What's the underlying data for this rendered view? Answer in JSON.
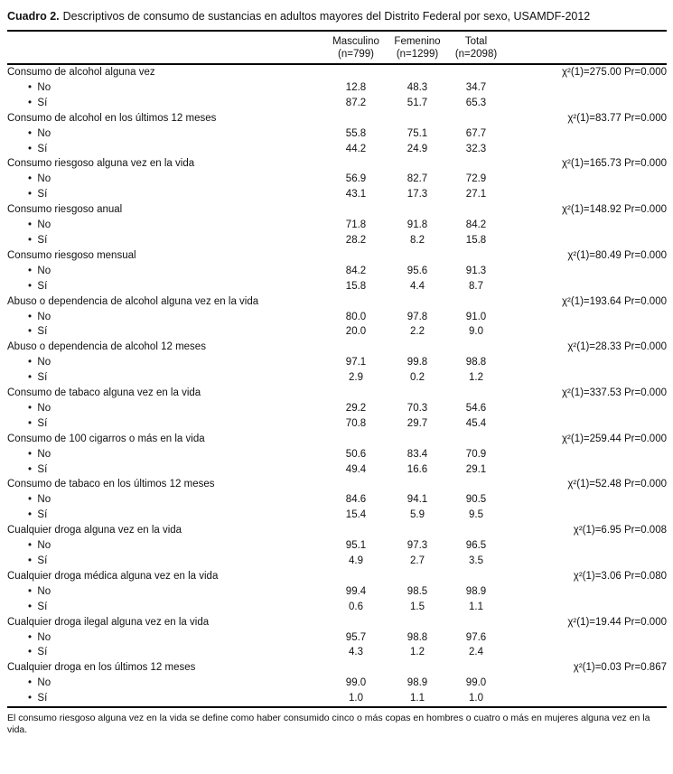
{
  "title": {
    "label": "Cuadro 2.",
    "text": "Descriptivos de consumo de sustancias en adultos mayores del Distrito Federal por sexo, USAMDF-2012"
  },
  "table": {
    "columns": [
      {
        "label": "Masculino",
        "sub": "(n=799)"
      },
      {
        "label": "Femenino",
        "sub": "(n=1299)"
      },
      {
        "label": "Total",
        "sub": "(n=2098)"
      }
    ],
    "sections": [
      {
        "label": "Consumo de alcohol alguna vez",
        "stat": "χ²(1)=275.00 Pr=0.000",
        "rows": [
          {
            "label": "No",
            "values": [
              "12.8",
              "48.3",
              "34.7"
            ]
          },
          {
            "label": "Sí",
            "values": [
              "87.2",
              "51.7",
              "65.3"
            ]
          }
        ]
      },
      {
        "label": "Consumo de alcohol en los últimos 12 meses",
        "stat": "χ²(1)=83.77 Pr=0.000",
        "rows": [
          {
            "label": "No",
            "values": [
              "55.8",
              "75.1",
              "67.7"
            ]
          },
          {
            "label": "Sí",
            "values": [
              "44.2",
              "24.9",
              "32.3"
            ]
          }
        ]
      },
      {
        "label": "Consumo riesgoso alguna vez en la vida",
        "stat": "χ²(1)=165.73 Pr=0.000",
        "rows": [
          {
            "label": "No",
            "values": [
              "56.9",
              "82.7",
              "72.9"
            ]
          },
          {
            "label": "Sí",
            "values": [
              "43.1",
              "17.3",
              "27.1"
            ]
          }
        ]
      },
      {
        "label": "Consumo riesgoso anual",
        "stat": "χ²(1)=148.92 Pr=0.000",
        "rows": [
          {
            "label": "No",
            "values": [
              "71.8",
              "91.8",
              "84.2"
            ]
          },
          {
            "label": "Sí",
            "values": [
              "28.2",
              "8.2",
              "15.8"
            ]
          }
        ]
      },
      {
        "label": "Consumo riesgoso mensual",
        "stat": "χ²(1)=80.49 Pr=0.000",
        "rows": [
          {
            "label": "No",
            "values": [
              "84.2",
              "95.6",
              "91.3"
            ]
          },
          {
            "label": "Sí",
            "values": [
              "15.8",
              "4.4",
              "8.7"
            ]
          }
        ]
      },
      {
        "label": "Abuso o dependencia de alcohol alguna vez en la vida",
        "stat": "χ²(1)=193.64 Pr=0.000",
        "rows": [
          {
            "label": "No",
            "values": [
              "80.0",
              "97.8",
              "91.0"
            ]
          },
          {
            "label": "Sí",
            "values": [
              "20.0",
              "2.2",
              "9.0"
            ]
          }
        ]
      },
      {
        "label": "Abuso o dependencia de alcohol 12 meses",
        "stat": "χ²(1)=28.33 Pr=0.000",
        "rows": [
          {
            "label": "No",
            "values": [
              "97.1",
              "99.8",
              "98.8"
            ]
          },
          {
            "label": "Sí",
            "values": [
              "2.9",
              "0.2",
              "1.2"
            ]
          }
        ]
      },
      {
        "label": "Consumo de tabaco alguna vez en la vida",
        "stat": "χ²(1)=337.53 Pr=0.000",
        "rows": [
          {
            "label": "No",
            "values": [
              "29.2",
              "70.3",
              "54.6"
            ]
          },
          {
            "label": "Sí",
            "values": [
              "70.8",
              "29.7",
              "45.4"
            ]
          }
        ]
      },
      {
        "label": "Consumo de 100 cigarros o más en la vida",
        "stat": "χ²(1)=259.44 Pr=0.000",
        "rows": [
          {
            "label": "No",
            "values": [
              "50.6",
              "83.4",
              "70.9"
            ]
          },
          {
            "label": "Sí",
            "values": [
              "49.4",
              "16.6",
              "29.1"
            ]
          }
        ]
      },
      {
        "label": "Consumo de tabaco en los últimos 12 meses",
        "stat": "χ²(1)=52.48 Pr=0.000",
        "rows": [
          {
            "label": "No",
            "values": [
              "84.6",
              "94.1",
              "90.5"
            ]
          },
          {
            "label": "Sí",
            "values": [
              "15.4",
              "5.9",
              "9.5"
            ]
          }
        ]
      },
      {
        "label": "Cualquier droga alguna vez en la vida",
        "stat": "χ²(1)=6.95 Pr=0.008",
        "rows": [
          {
            "label": "No",
            "values": [
              "95.1",
              "97.3",
              "96.5"
            ]
          },
          {
            "label": "Sí",
            "values": [
              "4.9",
              "2.7",
              "3.5"
            ]
          }
        ]
      },
      {
        "label": "Cualquier droga médica alguna vez en la vida",
        "stat": "χ²(1)=3.06 Pr=0.080",
        "rows": [
          {
            "label": "No",
            "values": [
              "99.4",
              "98.5",
              "98.9"
            ]
          },
          {
            "label": "Sí",
            "values": [
              "0.6",
              "1.5",
              "1.1"
            ]
          }
        ]
      },
      {
        "label": "Cualquier droga ilegal alguna vez en la vida",
        "stat": "χ²(1)=19.44 Pr=0.000",
        "rows": [
          {
            "label": "No",
            "values": [
              "95.7",
              "98.8",
              "97.6"
            ]
          },
          {
            "label": "Sí",
            "values": [
              "4.3",
              "1.2",
              "2.4"
            ]
          }
        ]
      },
      {
        "label": "Cualquier droga en los últimos 12 meses",
        "stat": "χ²(1)=0.03 Pr=0.867",
        "rows": [
          {
            "label": "No",
            "values": [
              "99.0",
              "98.9",
              "99.0"
            ]
          },
          {
            "label": "Sí",
            "values": [
              "1.0",
              "1.1",
              "1.0"
            ]
          }
        ]
      }
    ]
  },
  "footnote": "El consumo riesgoso alguna vez en la vida se define como haber consumido cinco o más copas en hombres o cuatro o más en mujeres alguna vez en la vida."
}
